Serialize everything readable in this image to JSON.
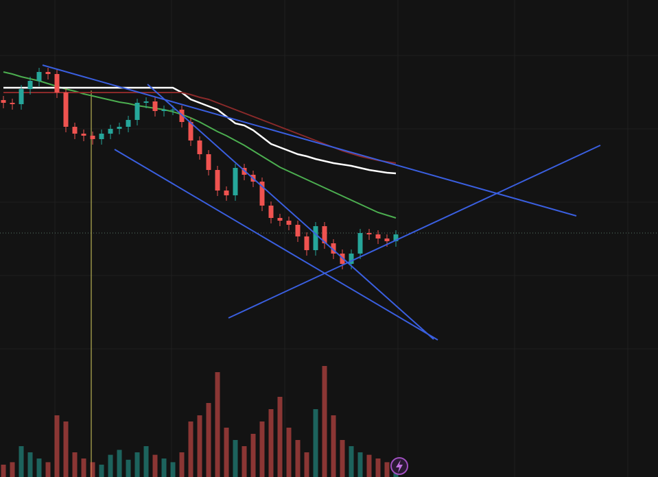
{
  "chart_data": {
    "type": "candlestick",
    "open": [
      55.0,
      54.6,
      54.4,
      56.6,
      57.8,
      59.1,
      58.8,
      56.1,
      51.1,
      50.1,
      49.8,
      49.3,
      50.1,
      50.8,
      51.1,
      52.1,
      54.6,
      54.8,
      53.4,
      53.6,
      53.6,
      51.8,
      49.1,
      47.1,
      44.8,
      41.8,
      41.1,
      45.1,
      44.1,
      43.1,
      39.6,
      37.8,
      37.4,
      36.8,
      35.1,
      33.1,
      36.6,
      34.1,
      32.6,
      31.1,
      32.6,
      35.6,
      35.4,
      34.8,
      34.4
    ],
    "high": [
      55.6,
      55.2,
      57.2,
      58.4,
      59.7,
      59.7,
      59.4,
      56.7,
      51.7,
      50.7,
      50.4,
      50.7,
      51.4,
      51.7,
      52.7,
      55.2,
      55.4,
      55.4,
      54.2,
      54.2,
      54.2,
      52.4,
      49.7,
      47.7,
      45.4,
      42.4,
      45.7,
      45.7,
      44.7,
      43.7,
      40.2,
      38.4,
      38.0,
      37.4,
      35.7,
      37.2,
      37.2,
      34.7,
      33.2,
      33.2,
      36.2,
      36.2,
      36.0,
      35.4,
      36.0
    ],
    "low": [
      53.8,
      53.6,
      53.6,
      55.8,
      57.0,
      58.0,
      55.3,
      50.3,
      49.3,
      49.0,
      48.5,
      48.5,
      49.3,
      50.0,
      50.3,
      51.3,
      53.8,
      52.6,
      52.6,
      52.8,
      51.0,
      48.3,
      46.3,
      44.0,
      41.0,
      40.3,
      40.3,
      43.3,
      42.3,
      38.8,
      37.0,
      36.6,
      36.0,
      34.3,
      32.3,
      32.3,
      33.3,
      31.8,
      30.3,
      30.3,
      31.8,
      34.6,
      34.0,
      33.6,
      33.6
    ],
    "close": [
      54.6,
      54.4,
      56.6,
      57.8,
      59.1,
      58.8,
      56.1,
      51.1,
      50.1,
      49.8,
      49.3,
      50.1,
      50.8,
      51.1,
      52.1,
      54.6,
      54.8,
      53.4,
      53.6,
      53.6,
      51.8,
      49.1,
      47.1,
      44.8,
      41.8,
      41.1,
      45.1,
      44.1,
      43.1,
      39.6,
      37.8,
      37.4,
      36.8,
      35.1,
      33.1,
      36.6,
      34.1,
      32.6,
      31.1,
      32.6,
      35.6,
      35.4,
      34.8,
      34.4,
      35.4
    ],
    "volume": [
      10,
      12,
      25,
      20,
      15,
      12,
      50,
      45,
      20,
      15,
      12,
      10,
      18,
      22,
      14,
      20,
      25,
      18,
      15,
      12,
      20,
      45,
      50,
      60,
      85,
      40,
      30,
      25,
      35,
      45,
      55,
      65,
      40,
      30,
      20,
      55,
      90,
      50,
      30,
      25,
      20,
      18,
      15,
      12,
      14
    ],
    "up_color": "#26a69a",
    "down_color": "#ef5350",
    "ylim": [
      0,
      69.6
    ],
    "volume_lim": [
      0,
      100
    ],
    "series": [
      {
        "color": "#4caf50",
        "values": [
          59.1,
          58.8,
          58.4,
          58.1,
          57.8,
          57.4,
          57.0,
          56.6,
          56.3,
          55.9,
          55.6,
          55.3,
          55.0,
          54.7,
          54.5,
          54.2,
          54.0,
          53.8,
          53.6,
          53.3,
          52.9,
          52.4,
          51.8,
          51.1,
          50.4,
          49.8,
          49.1,
          48.4,
          47.6,
          46.8,
          46.0,
          45.2,
          44.6,
          44.0,
          43.4,
          42.8,
          42.2,
          41.6,
          41.0,
          40.4,
          39.8,
          39.2,
          38.6,
          38.2,
          37.8
        ]
      },
      {
        "color": "#ffffff",
        "values": [
          56.8,
          56.8,
          56.8,
          56.8,
          56.8,
          56.8,
          56.8,
          56.8,
          56.8,
          56.8,
          56.8,
          56.8,
          56.8,
          56.8,
          56.8,
          56.8,
          56.8,
          56.8,
          56.8,
          56.8,
          56.1,
          55.1,
          54.6,
          54.1,
          53.6,
          52.6,
          51.6,
          51.3,
          50.6,
          49.6,
          48.6,
          48.1,
          47.6,
          47.1,
          46.8,
          46.4,
          46.1,
          45.8,
          45.6,
          45.4,
          45.1,
          44.8,
          44.6,
          44.4,
          44.3
        ]
      },
      {
        "color": "#8b2a2a",
        "values": [
          56.1,
          56.1,
          56.1,
          56.1,
          56.1,
          56.1,
          56.1,
          56.1,
          56.1,
          56.1,
          56.1,
          56.1,
          56.1,
          56.1,
          56.1,
          56.1,
          56.1,
          56.1,
          56.1,
          56.1,
          56.1,
          55.8,
          55.4,
          55.1,
          54.6,
          54.1,
          53.6,
          53.1,
          52.6,
          52.1,
          51.6,
          51.1,
          50.6,
          50.1,
          49.6,
          49.1,
          48.6,
          48.1,
          47.6,
          47.2,
          46.8,
          46.5,
          46.2,
          46.0,
          45.8
        ]
      }
    ]
  }
}
